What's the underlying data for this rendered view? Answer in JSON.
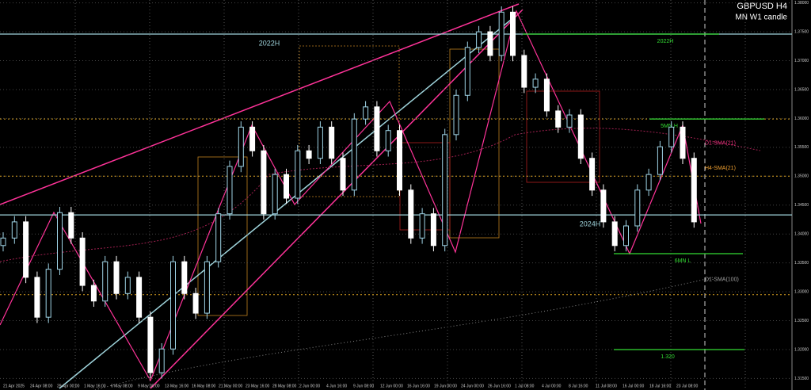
{
  "chart_data": {
    "type": "candlestick",
    "title": "GBPUSD H4",
    "subtitle": "MN W1 candle",
    "open": [
      1.338,
      1.3393,
      1.3421,
      1.3325,
      1.3256,
      1.3339,
      1.3437,
      1.3393,
      1.3311,
      1.3284,
      1.3352,
      1.3297,
      1.3325,
      1.3256,
      1.316,
      1.3201,
      1.3352,
      1.3297,
      1.3263,
      1.3352,
      1.3435,
      1.3517,
      1.3585,
      1.3544,
      1.3435,
      1.3503,
      1.3462,
      1.3544,
      1.3531,
      1.3585,
      1.3531,
      1.3476,
      1.3599,
      1.362,
      1.3544,
      1.3579,
      1.3476,
      1.3393,
      1.3435,
      1.338,
      1.3572,
      1.364,
      1.3723,
      1.375,
      1.3709,
      1.3784,
      1.3709,
      1.3654,
      1.3668,
      1.3613,
      1.3585,
      1.3606,
      1.3531,
      1.3476,
      1.3421,
      1.338,
      1.3414,
      1.3476,
      1.3503,
      1.3551,
      1.3585,
      1.3531
    ],
    "high": [
      1.3403,
      1.3431,
      1.3431,
      1.3335,
      1.3349,
      1.3447,
      1.3447,
      1.3403,
      1.3321,
      1.3362,
      1.3362,
      1.3335,
      1.3335,
      1.3266,
      1.3211,
      1.3362,
      1.3362,
      1.3307,
      1.3362,
      1.3445,
      1.3527,
      1.3595,
      1.3595,
      1.3554,
      1.3513,
      1.3513,
      1.3554,
      1.3554,
      1.3595,
      1.3595,
      1.3541,
      1.3609,
      1.363,
      1.363,
      1.3589,
      1.3589,
      1.3486,
      1.3445,
      1.3445,
      1.3582,
      1.365,
      1.3733,
      1.376,
      1.376,
      1.3794,
      1.3794,
      1.3719,
      1.3678,
      1.3678,
      1.3623,
      1.3616,
      1.3616,
      1.3541,
      1.3486,
      1.3431,
      1.3424,
      1.3486,
      1.3513,
      1.3561,
      1.3595,
      1.3595,
      1.3541
    ],
    "low": [
      1.337,
      1.3383,
      1.3315,
      1.3246,
      1.3246,
      1.3329,
      1.3383,
      1.3301,
      1.3274,
      1.3274,
      1.3287,
      1.3287,
      1.3246,
      1.315,
      1.315,
      1.3191,
      1.3287,
      1.3253,
      1.3253,
      1.3342,
      1.3425,
      1.3507,
      1.3534,
      1.3425,
      1.3425,
      1.3452,
      1.3452,
      1.3521,
      1.3521,
      1.3521,
      1.3466,
      1.3466,
      1.3589,
      1.3534,
      1.3534,
      1.3466,
      1.3383,
      1.3383,
      1.337,
      1.337,
      1.3562,
      1.363,
      1.3713,
      1.3699,
      1.3699,
      1.3699,
      1.3644,
      1.3644,
      1.3603,
      1.3575,
      1.3575,
      1.3521,
      1.3466,
      1.3411,
      1.337,
      1.337,
      1.3404,
      1.3466,
      1.3493,
      1.3541,
      1.3521,
      1.3411
    ],
    "close": [
      1.3393,
      1.3421,
      1.3325,
      1.3256,
      1.3339,
      1.3437,
      1.3393,
      1.3311,
      1.3284,
      1.3352,
      1.3297,
      1.3325,
      1.3256,
      1.316,
      1.3201,
      1.3352,
      1.3297,
      1.3263,
      1.3352,
      1.3435,
      1.3517,
      1.3585,
      1.3544,
      1.3435,
      1.3503,
      1.3462,
      1.3544,
      1.3531,
      1.3585,
      1.3531,
      1.3476,
      1.3599,
      1.362,
      1.3544,
      1.3579,
      1.3476,
      1.3393,
      1.3435,
      1.338,
      1.3572,
      1.364,
      1.3723,
      1.375,
      1.3709,
      1.3784,
      1.3709,
      1.3654,
      1.3668,
      1.3613,
      1.3585,
      1.3606,
      1.3531,
      1.3476,
      1.3421,
      1.338,
      1.3414,
      1.3476,
      1.3503,
      1.3551,
      1.3585,
      1.3531,
      1.3421
    ],
    "up_color": "#9fd4e6",
    "down_color": "#ffffff",
    "x_labels": [
      "21 Apr 2025",
      "24 Apr 08:00",
      "29 Apr 00:00",
      "1 May 16:00",
      "6 May 08:00",
      "9 May 00:00",
      "13 May 16:00",
      "16 May 08:00",
      "21 May 00:00",
      "23 May 16:00",
      "28 May 08:00",
      "2 Jun 00:00",
      "4 Jun 16:00",
      "9 Jun 08:00",
      "12 Jun 00:00",
      "16 Jun 16:00",
      "19 Jun 00:00",
      "24 Jun 00:00",
      "26 Jun 16:00",
      "1 Jul 08:00",
      "4 Jul 00:00",
      "8 Jul 16:00",
      "11 Jul 08:00",
      "16 Jul 00:00",
      "18 Jul 16:00",
      "23 Jul 08:00"
    ],
    "ylim": [
      1.313,
      1.3805
    ],
    "yticks": [
      {
        "value": 1.315,
        "label": "1.31500"
      },
      {
        "value": 1.32,
        "label": "1.32000"
      },
      {
        "value": 1.325,
        "label": "1.32500"
      },
      {
        "value": 1.33,
        "label": "1.33000"
      },
      {
        "value": 1.335,
        "label": "1.33500"
      },
      {
        "value": 1.34,
        "label": "1.34000"
      },
      {
        "value": 1.345,
        "label": "1.34500"
      },
      {
        "value": 1.35,
        "label": "1.35000"
      },
      {
        "value": 1.355,
        "label": "1.35500"
      },
      {
        "value": 1.36,
        "label": "1.36000"
      },
      {
        "value": 1.365,
        "label": "1.36500"
      },
      {
        "value": 1.37,
        "label": "1.37000"
      },
      {
        "value": 1.375,
        "label": "1.37500"
      },
      {
        "value": 1.38,
        "label": "1.38000"
      }
    ],
    "grid": true,
    "levels": [
      {
        "label": "2022H",
        "value": 1.3746,
        "color": "#9fd4dc"
      },
      {
        "label": "2022H",
        "value": 1.3746,
        "color": "#33dd33"
      },
      {
        "label": "5MN H",
        "value": 1.3599,
        "color": "#33dd33"
      },
      {
        "label": "2024H",
        "value": 1.3433,
        "color": "#9fd4dc"
      },
      {
        "label": "6MN L",
        "value": 1.3366,
        "color": "#33dd33"
      },
      {
        "label": "1.320",
        "value": 1.32,
        "color": "#33dd33"
      }
    ],
    "dotted_levels": [
      1.3599,
      1.35,
      1.3295
    ],
    "indicators": [
      {
        "label": "D1-SMA(21)",
        "value": 1.3557,
        "color": "#e0307a"
      },
      {
        "label": "H4-SMA(21)",
        "value": 1.3514,
        "color": "#f0a030"
      },
      {
        "label": "D1-SMA(100)",
        "value": 1.3321,
        "color": "#a0a0a0"
      }
    ]
  }
}
